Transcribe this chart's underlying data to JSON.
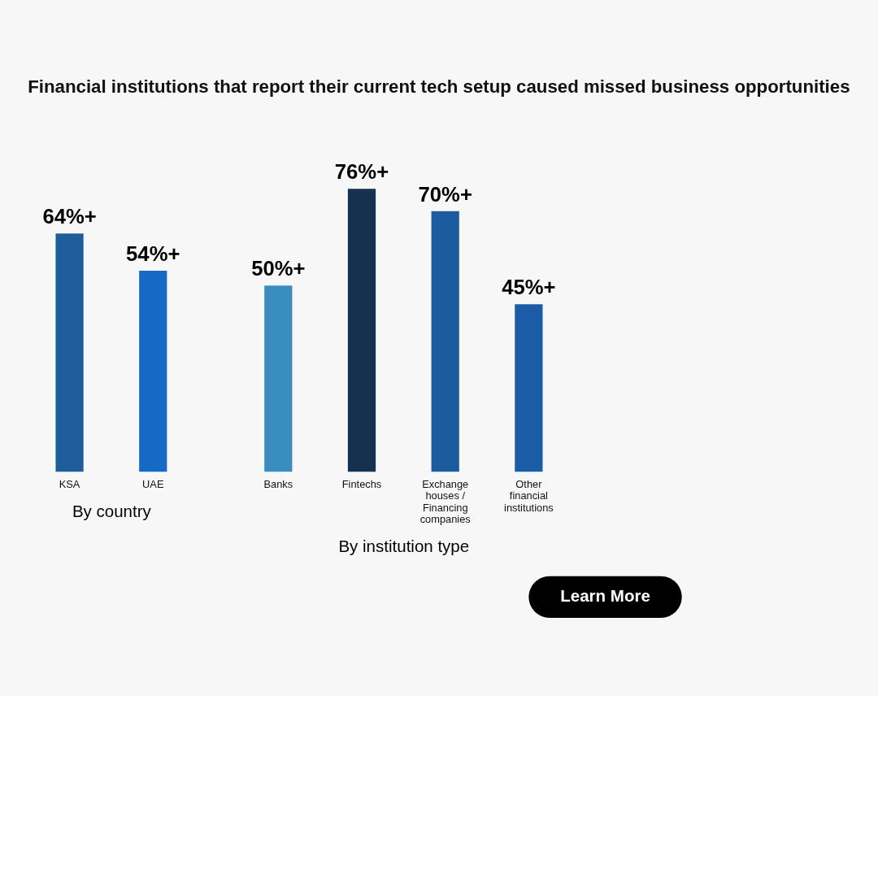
{
  "chart_data": [
    {
      "type": "bar",
      "title": "Financial institutions that report their current tech setup caused missed business opportunities",
      "xlabel": "By country",
      "categories": [
        "KSA",
        "UAE"
      ],
      "values": [
        64,
        54
      ],
      "value_labels": [
        "64%+",
        "54%+"
      ],
      "colors": [
        "#1f5c9c",
        "#1669c4"
      ]
    },
    {
      "type": "bar",
      "xlabel": "By institution type",
      "categories": [
        "Banks",
        "Fintechs",
        "Exchange houses / Financing companies",
        "Other financial institutions"
      ],
      "values": [
        50,
        76,
        70,
        45
      ],
      "value_labels": [
        "50%+",
        "76%+",
        "70%+",
        "45%+"
      ],
      "colors": [
        "#3a8dbf",
        "#14314f",
        "#1d5b9f",
        "#1b5ca6"
      ],
      "annotations": [
        "Learn More"
      ]
    }
  ]
}
